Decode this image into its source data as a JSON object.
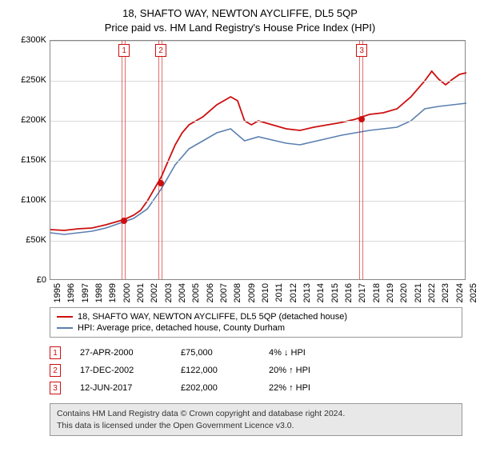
{
  "title": "18, SHAFTO WAY, NEWTON AYCLIFFE, DL5 5QP",
  "subtitle": "Price paid vs. HM Land Registry's House Price Index (HPI)",
  "chart": {
    "type": "line",
    "background_color": "#ffffff",
    "grid_color": "#d8d8d8",
    "border_color": "#888888",
    "ylim": [
      0,
      300000
    ],
    "ytick_step": 50000,
    "yticks": [
      "£0",
      "£50K",
      "£100K",
      "£150K",
      "£200K",
      "£250K",
      "£300K"
    ],
    "xlim": [
      1995,
      2025
    ],
    "xticks": [
      1995,
      1996,
      1997,
      1998,
      1999,
      2000,
      2001,
      2002,
      2003,
      2004,
      2005,
      2006,
      2007,
      2008,
      2009,
      2010,
      2011,
      2012,
      2013,
      2014,
      2015,
      2016,
      2017,
      2018,
      2019,
      2020,
      2021,
      2022,
      2023,
      2024,
      2025
    ],
    "series": [
      {
        "name": "property",
        "color": "#cd0f0f",
        "width": 1.8,
        "points": [
          [
            1995,
            64000
          ],
          [
            1996,
            63000
          ],
          [
            1997,
            65000
          ],
          [
            1998,
            66000
          ],
          [
            1999,
            70000
          ],
          [
            2000,
            75000
          ],
          [
            2000.5,
            78000
          ],
          [
            2001,
            82000
          ],
          [
            2001.5,
            88000
          ],
          [
            2002,
            100000
          ],
          [
            2002.5,
            115000
          ],
          [
            2003,
            130000
          ],
          [
            2003.5,
            150000
          ],
          [
            2004,
            170000
          ],
          [
            2004.5,
            185000
          ],
          [
            2005,
            195000
          ],
          [
            2006,
            205000
          ],
          [
            2007,
            220000
          ],
          [
            2008,
            230000
          ],
          [
            2008.5,
            225000
          ],
          [
            2009,
            200000
          ],
          [
            2009.5,
            195000
          ],
          [
            2010,
            200000
          ],
          [
            2011,
            195000
          ],
          [
            2012,
            190000
          ],
          [
            2013,
            188000
          ],
          [
            2014,
            192000
          ],
          [
            2015,
            195000
          ],
          [
            2016,
            198000
          ],
          [
            2017,
            202000
          ],
          [
            2018,
            208000
          ],
          [
            2019,
            210000
          ],
          [
            2020,
            215000
          ],
          [
            2021,
            230000
          ],
          [
            2022,
            250000
          ],
          [
            2022.5,
            262000
          ],
          [
            2023,
            252000
          ],
          [
            2023.5,
            245000
          ],
          [
            2024,
            252000
          ],
          [
            2024.5,
            258000
          ],
          [
            2025,
            260000
          ]
        ]
      },
      {
        "name": "hpi",
        "color": "#5b7fb0",
        "width": 1.6,
        "points": [
          [
            1995,
            60000
          ],
          [
            1996,
            58000
          ],
          [
            1997,
            60000
          ],
          [
            1998,
            62000
          ],
          [
            1999,
            66000
          ],
          [
            2000,
            72000
          ],
          [
            2001,
            78000
          ],
          [
            2002,
            90000
          ],
          [
            2003,
            115000
          ],
          [
            2004,
            145000
          ],
          [
            2005,
            165000
          ],
          [
            2006,
            175000
          ],
          [
            2007,
            185000
          ],
          [
            2008,
            190000
          ],
          [
            2009,
            175000
          ],
          [
            2010,
            180000
          ],
          [
            2011,
            176000
          ],
          [
            2012,
            172000
          ],
          [
            2013,
            170000
          ],
          [
            2014,
            174000
          ],
          [
            2015,
            178000
          ],
          [
            2016,
            182000
          ],
          [
            2017,
            185000
          ],
          [
            2018,
            188000
          ],
          [
            2019,
            190000
          ],
          [
            2020,
            192000
          ],
          [
            2021,
            200000
          ],
          [
            2022,
            215000
          ],
          [
            2023,
            218000
          ],
          [
            2024,
            220000
          ],
          [
            2025,
            222000
          ]
        ]
      }
    ],
    "markers": [
      {
        "num": "1",
        "x": 2000.32,
        "y": 75000,
        "color": "#cd0f0f"
      },
      {
        "num": "2",
        "x": 2002.96,
        "y": 122000,
        "color": "#cd0f0f"
      },
      {
        "num": "3",
        "x": 2017.45,
        "y": 202000,
        "color": "#cd0f0f"
      }
    ],
    "marker_band_color_rgba": "rgba(205,15,15,0.6)"
  },
  "legend": {
    "items": [
      {
        "color": "#cd0f0f",
        "label": "18, SHAFTO WAY, NEWTON AYCLIFFE, DL5 5QP (detached house)"
      },
      {
        "color": "#5b7fb0",
        "label": "HPI: Average price, detached house, County Durham"
      }
    ]
  },
  "marker_rows": [
    {
      "num": "1",
      "date": "27-APR-2000",
      "price": "£75,000",
      "pct": "4% ↓ HPI"
    },
    {
      "num": "2",
      "date": "17-DEC-2002",
      "price": "£122,000",
      "pct": "20% ↑ HPI"
    },
    {
      "num": "3",
      "date": "12-JUN-2017",
      "price": "£202,000",
      "pct": "22% ↑ HPI"
    }
  ],
  "attribution": {
    "line1": "Contains HM Land Registry data © Crown copyright and database right 2024.",
    "line2": "This data is licensed under the Open Government Licence v3.0."
  },
  "style": {
    "title_fontsize": 13,
    "axis_fontsize": 11,
    "legend_fontsize": 11
  }
}
